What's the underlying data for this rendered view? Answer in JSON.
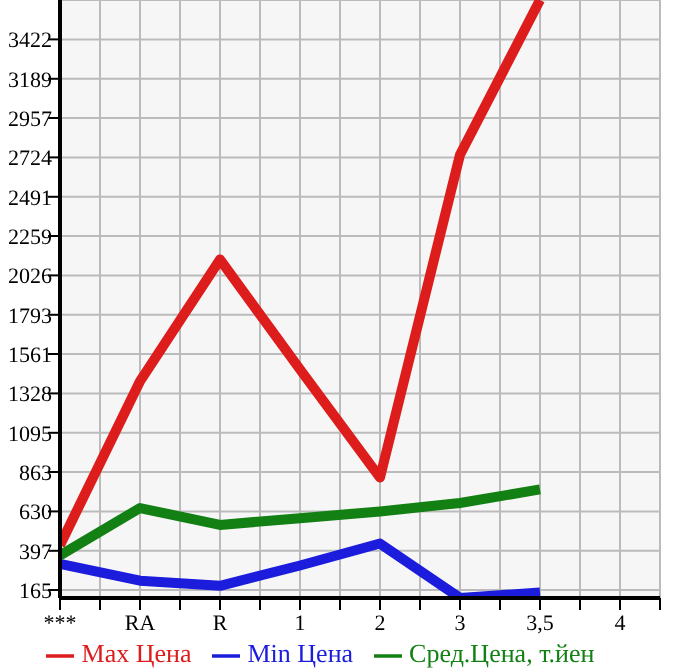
{
  "chart_data": {
    "type": "line",
    "categories": [
      "***",
      "RA",
      "R",
      "1",
      "2",
      "3",
      "3,5",
      "4"
    ],
    "series": [
      {
        "name": "Max Цена",
        "color": "#dd1c1c",
        "values": [
          430,
          1400,
          2120,
          1470,
          830,
          2740,
          3655,
          null
        ]
      },
      {
        "name": "Min Цена",
        "color": "#1c1cdd",
        "values": [
          320,
          220,
          190,
          310,
          440,
          118,
          150,
          null
        ]
      },
      {
        "name": "Сред.Цена, т.йен",
        "color": "#138013",
        "values": [
          370,
          650,
          550,
          590,
          630,
          680,
          760,
          null
        ]
      }
    ],
    "ylim": [
      118,
      3655
    ],
    "yticks": [
      165,
      397,
      630,
      863,
      1095,
      1328,
      1561,
      1793,
      2026,
      2259,
      2491,
      2724,
      2957,
      3189,
      3422
    ],
    "grid": true,
    "legend": "bottom",
    "marker": "none",
    "line_style": "solid"
  }
}
